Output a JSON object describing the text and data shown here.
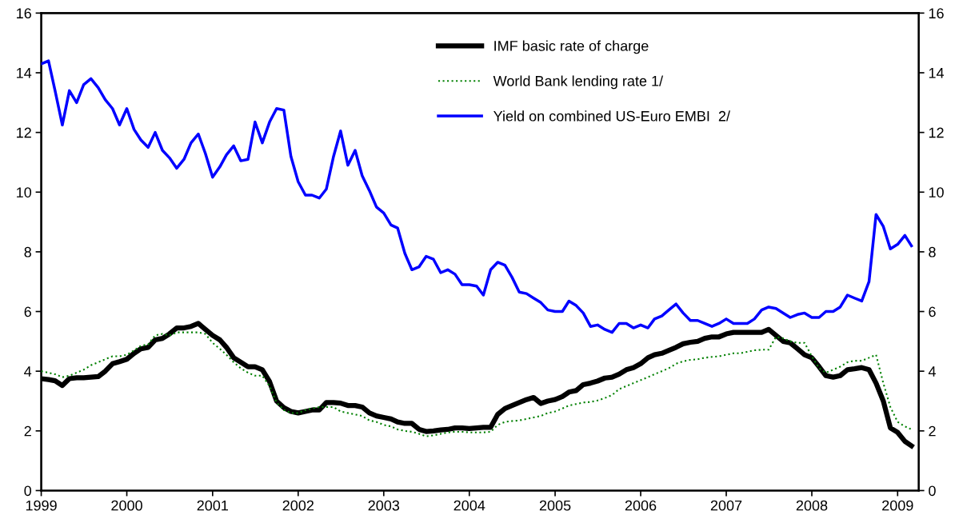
{
  "chart_data": {
    "type": "line",
    "x": [
      "1999-01",
      "1999-02",
      "1999-03",
      "1999-04",
      "1999-05",
      "1999-06",
      "1999-07",
      "1999-08",
      "1999-09",
      "1999-10",
      "1999-11",
      "1999-12",
      "2000-01",
      "2000-02",
      "2000-03",
      "2000-04",
      "2000-05",
      "2000-06",
      "2000-07",
      "2000-08",
      "2000-09",
      "2000-10",
      "2000-11",
      "2000-12",
      "2001-01",
      "2001-02",
      "2001-03",
      "2001-04",
      "2001-05",
      "2001-06",
      "2001-07",
      "2001-08",
      "2001-09",
      "2001-10",
      "2001-11",
      "2001-12",
      "2002-01",
      "2002-02",
      "2002-03",
      "2002-04",
      "2002-05",
      "2002-06",
      "2002-07",
      "2002-08",
      "2002-09",
      "2002-10",
      "2002-11",
      "2002-12",
      "2003-01",
      "2003-02",
      "2003-03",
      "2003-04",
      "2003-05",
      "2003-06",
      "2003-07",
      "2003-08",
      "2003-09",
      "2003-10",
      "2003-11",
      "2003-12",
      "2004-01",
      "2004-02",
      "2004-03",
      "2004-04",
      "2004-05",
      "2004-06",
      "2004-07",
      "2004-08",
      "2004-09",
      "2004-10",
      "2004-11",
      "2004-12",
      "2005-01",
      "2005-02",
      "2005-03",
      "2005-04",
      "2005-05",
      "2005-06",
      "2005-07",
      "2005-08",
      "2005-09",
      "2005-10",
      "2005-11",
      "2005-12",
      "2006-01",
      "2006-02",
      "2006-03",
      "2006-04",
      "2006-05",
      "2006-06",
      "2006-07",
      "2006-08",
      "2006-09",
      "2006-10",
      "2006-11",
      "2006-12",
      "2007-01",
      "2007-02",
      "2007-03",
      "2007-04",
      "2007-05",
      "2007-06",
      "2007-07",
      "2007-08",
      "2007-09",
      "2007-10",
      "2007-11",
      "2007-12",
      "2008-01",
      "2008-02",
      "2008-03",
      "2008-04",
      "2008-05",
      "2008-06",
      "2008-07",
      "2008-08",
      "2008-09",
      "2008-10",
      "2008-11",
      "2008-12",
      "2009-01",
      "2009-02",
      "2009-03"
    ],
    "series": [
      {
        "name": "IMF basic rate of charge",
        "color": "#000000",
        "line_style": "solid",
        "values": [
          3.75,
          3.72,
          3.68,
          3.52,
          3.75,
          3.78,
          3.78,
          3.8,
          3.82,
          4.0,
          4.25,
          4.32,
          4.4,
          4.6,
          4.75,
          4.8,
          5.05,
          5.1,
          5.25,
          5.45,
          5.45,
          5.5,
          5.6,
          5.4,
          5.2,
          5.05,
          4.8,
          4.45,
          4.3,
          4.15,
          4.15,
          4.05,
          3.65,
          3.0,
          2.78,
          2.65,
          2.6,
          2.65,
          2.7,
          2.7,
          2.95,
          2.95,
          2.93,
          2.85,
          2.85,
          2.8,
          2.6,
          2.5,
          2.45,
          2.4,
          2.3,
          2.25,
          2.25,
          2.05,
          1.98,
          2.0,
          2.03,
          2.05,
          2.1,
          2.1,
          2.08,
          2.1,
          2.12,
          2.12,
          2.55,
          2.75,
          2.85,
          2.95,
          3.05,
          3.12,
          2.92,
          3.0,
          3.05,
          3.15,
          3.3,
          3.35,
          3.55,
          3.6,
          3.67,
          3.77,
          3.8,
          3.9,
          4.05,
          4.12,
          4.25,
          4.45,
          4.55,
          4.6,
          4.7,
          4.8,
          4.92,
          4.97,
          5.0,
          5.1,
          5.15,
          5.15,
          5.25,
          5.3,
          5.3,
          5.3,
          5.3,
          5.3,
          5.4,
          5.2,
          5.0,
          4.95,
          4.75,
          4.55,
          4.45,
          4.15,
          3.85,
          3.8,
          3.85,
          4.05,
          4.08,
          4.12,
          4.05,
          3.6,
          3.0,
          2.1,
          1.95,
          1.65,
          1.5
        ]
      },
      {
        "name": "World Bank lending rate 1/",
        "color": "#008000",
        "line_style": "dotted",
        "values": [
          4.0,
          3.95,
          3.9,
          3.8,
          3.85,
          3.95,
          4.05,
          4.2,
          4.3,
          4.4,
          4.5,
          4.5,
          4.55,
          4.7,
          4.85,
          4.9,
          5.2,
          5.25,
          5.2,
          5.3,
          5.3,
          5.3,
          5.3,
          5.25,
          4.95,
          4.75,
          4.55,
          4.3,
          4.1,
          3.95,
          3.85,
          3.85,
          3.5,
          2.95,
          2.7,
          2.6,
          2.6,
          2.7,
          2.75,
          2.8,
          2.8,
          2.8,
          2.65,
          2.6,
          2.55,
          2.5,
          2.35,
          2.3,
          2.2,
          2.15,
          2.05,
          2.0,
          1.97,
          1.9,
          1.82,
          1.85,
          1.9,
          1.95,
          1.97,
          1.97,
          1.95,
          1.95,
          1.95,
          1.97,
          2.2,
          2.3,
          2.33,
          2.35,
          2.4,
          2.45,
          2.5,
          2.6,
          2.65,
          2.75,
          2.85,
          2.9,
          2.95,
          2.97,
          3.02,
          3.1,
          3.2,
          3.4,
          3.5,
          3.6,
          3.7,
          3.8,
          3.9,
          4.0,
          4.1,
          4.25,
          4.33,
          4.38,
          4.4,
          4.45,
          4.48,
          4.5,
          4.55,
          4.6,
          4.6,
          4.65,
          4.7,
          4.72,
          4.72,
          5.15,
          5.1,
          5.0,
          4.95,
          4.95,
          4.5,
          4.1,
          3.95,
          4.05,
          4.15,
          4.3,
          4.35,
          4.35,
          4.45,
          4.55,
          3.6,
          2.8,
          2.3,
          2.15,
          2.05
        ]
      },
      {
        "name": "Yield on combined US-Euro EMBI  2/",
        "color": "#0000ff",
        "line_style": "solid",
        "values": [
          14.3,
          14.4,
          13.4,
          12.25,
          13.4,
          13.0,
          13.6,
          13.8,
          13.5,
          13.1,
          12.8,
          12.25,
          12.8,
          12.1,
          11.75,
          11.5,
          12.0,
          11.4,
          11.15,
          10.8,
          11.1,
          11.65,
          11.95,
          11.3,
          10.5,
          10.85,
          11.25,
          11.55,
          11.05,
          11.1,
          12.35,
          11.65,
          12.35,
          12.8,
          12.75,
          11.2,
          10.35,
          9.9,
          9.9,
          9.8,
          10.1,
          11.2,
          12.05,
          10.9,
          11.4,
          10.55,
          10.05,
          9.5,
          9.3,
          8.9,
          8.8,
          7.95,
          7.4,
          7.5,
          7.85,
          7.75,
          7.3,
          7.4,
          7.25,
          6.9,
          6.9,
          6.85,
          6.55,
          7.4,
          7.65,
          7.55,
          7.15,
          6.65,
          6.6,
          6.45,
          6.3,
          6.05,
          6.0,
          6.0,
          6.35,
          6.2,
          5.95,
          5.5,
          5.55,
          5.4,
          5.3,
          5.6,
          5.6,
          5.45,
          5.55,
          5.45,
          5.75,
          5.85,
          6.05,
          6.25,
          5.95,
          5.7,
          5.7,
          5.6,
          5.5,
          5.6,
          5.75,
          5.6,
          5.6,
          5.6,
          5.75,
          6.05,
          6.15,
          6.1,
          5.95,
          5.8,
          5.9,
          5.95,
          5.8,
          5.8,
          6.0,
          6.0,
          6.15,
          6.55,
          6.45,
          6.35,
          7.0,
          9.25,
          8.85,
          8.1,
          8.25,
          8.55,
          8.2
        ]
      }
    ],
    "xlim": [
      "1999-01",
      "2009-04"
    ],
    "xticks": [
      {
        "value": "1999-01",
        "label": "1999"
      },
      {
        "value": "2000-01",
        "label": "2000"
      },
      {
        "value": "2001-01",
        "label": "2001"
      },
      {
        "value": "2002-01",
        "label": "2002"
      },
      {
        "value": "2003-01",
        "label": "2003"
      },
      {
        "value": "2004-01",
        "label": "2004"
      },
      {
        "value": "2005-01",
        "label": "2005"
      },
      {
        "value": "2006-01",
        "label": "2006"
      },
      {
        "value": "2007-01",
        "label": "2007"
      },
      {
        "value": "2008-01",
        "label": "2008"
      },
      {
        "value": "2009-01",
        "label": "2009"
      }
    ],
    "ylim": [
      0,
      16
    ],
    "yticks": [
      0,
      2,
      4,
      6,
      8,
      10,
      12,
      14,
      16
    ],
    "y2lim": [
      0,
      16
    ],
    "y2ticks": [
      0,
      2,
      4,
      6,
      8,
      10,
      12,
      14,
      16
    ],
    "grid": false,
    "legend": "top right",
    "marker": "none"
  }
}
